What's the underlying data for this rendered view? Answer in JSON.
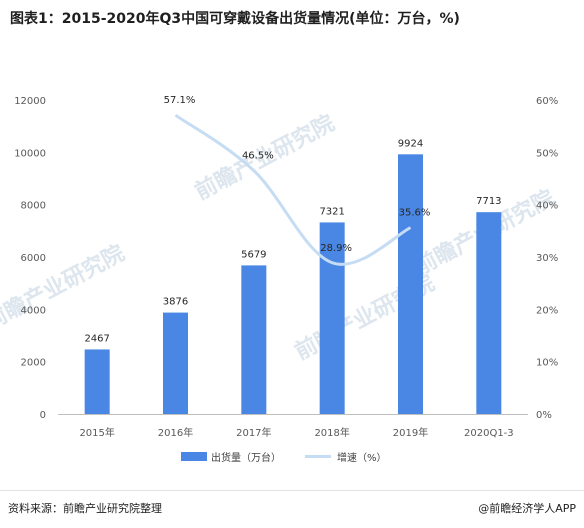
{
  "title": "图表1：2015-2020年Q3中国可穿戴设备出货量情况(单位：万台，%)",
  "footer": {
    "source": "资料来源：前瞻产业研究院整理",
    "brand": "@前瞻经济学人APP"
  },
  "watermark": "前瞻产业研究院",
  "colors": {
    "bar": "#4a86e3",
    "line": "#c5dcf3"
  },
  "chart_data": {
    "type": "bar",
    "categories": [
      "2015年",
      "2016年",
      "2017年",
      "2018年",
      "2019年",
      "2020Q1-3"
    ],
    "series": [
      {
        "name": "出货量（万台）",
        "type": "bar",
        "axis": "left",
        "values": [
          2467,
          3876,
          5679,
          7321,
          9924,
          7713
        ]
      },
      {
        "name": "增速（%）",
        "type": "line",
        "axis": "right",
        "values": [
          null,
          57.1,
          46.5,
          28.9,
          35.6,
          null
        ],
        "labels": [
          "",
          "57.1%",
          "46.5%",
          "28.9%",
          "35.6%",
          ""
        ]
      }
    ],
    "y_left": {
      "min": 0,
      "max": 12000,
      "ticks": [
        "0",
        "2000",
        "4000",
        "6000",
        "8000",
        "10000",
        "12000"
      ]
    },
    "y_right": {
      "min": 0,
      "max": 60,
      "ticks": [
        "0%",
        "10%",
        "20%",
        "30%",
        "40%",
        "50%",
        "60%"
      ]
    },
    "legend_position": "bottom",
    "grid": false
  }
}
